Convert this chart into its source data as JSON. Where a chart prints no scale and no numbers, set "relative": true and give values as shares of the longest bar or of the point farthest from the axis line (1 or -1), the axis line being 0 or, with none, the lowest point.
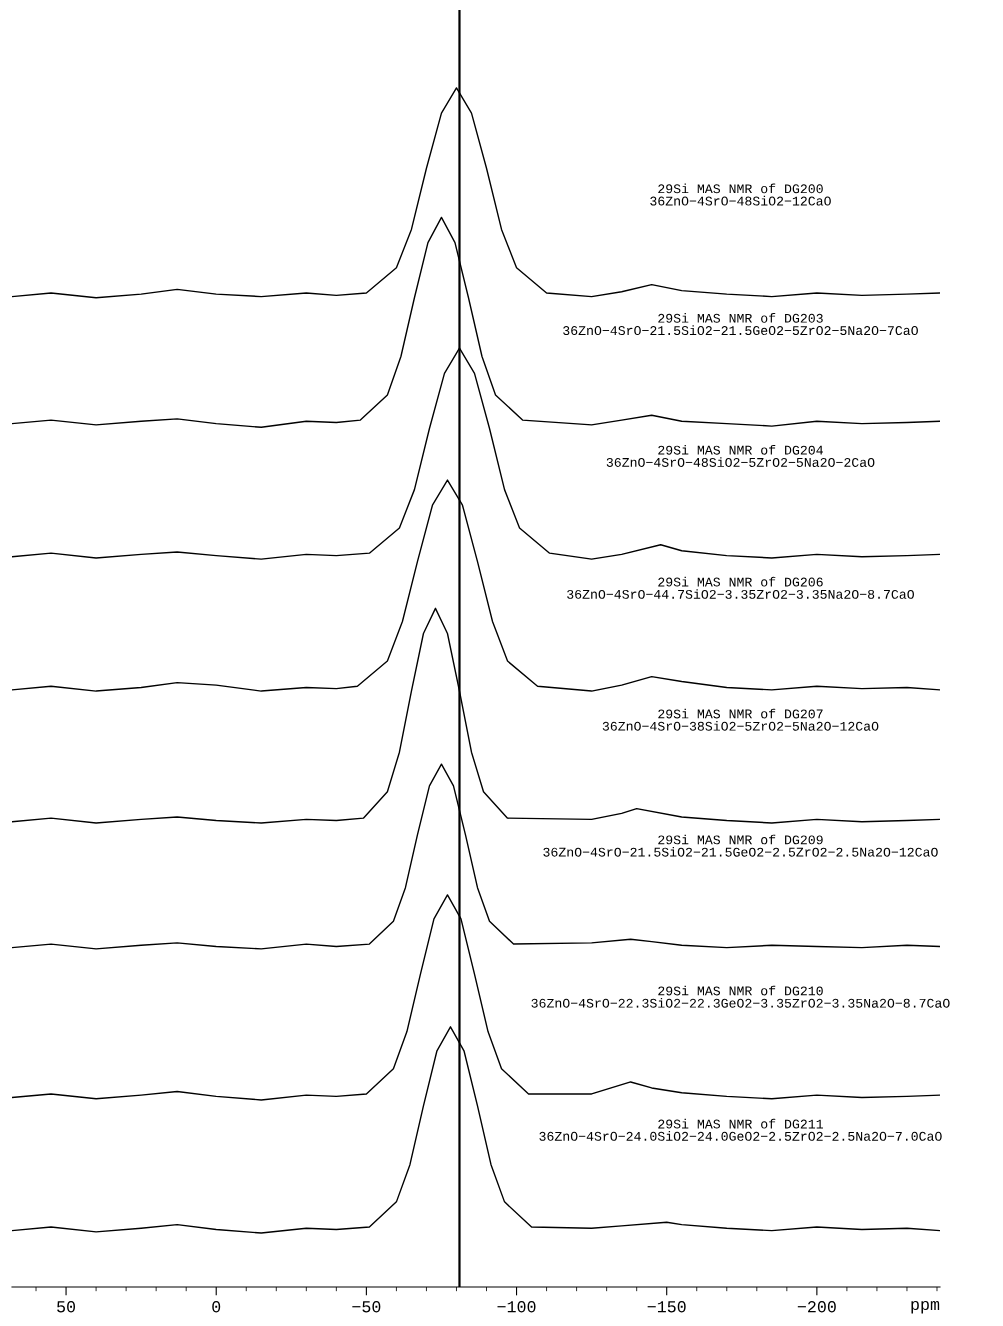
{
  "chart_data": {
    "type": "line",
    "relative": true,
    "xlabel": "ppm",
    "xlim": [
      68,
      -241
    ],
    "xticks": [
      50,
      0,
      {
        "value": -50,
        "label": "−50"
      },
      {
        "value": -100,
        "label": "−100"
      },
      {
        "value": -150,
        "label": "−150"
      },
      {
        "value": -200,
        "label": "−200"
      }
    ],
    "grid": false,
    "legend": false,
    "marker": "none",
    "line_style": "solid",
    "ref_lines": [
      {
        "axis": "x",
        "value": -81,
        "color": "#000000"
      }
    ],
    "annotations": [
      "29Si MAS NMR of DG200\n36ZnO−4SrO−48SiO2−12CaO",
      "29Si MAS NMR of DG203\n36ZnO−4SrO−21.5SiO2−21.5GeO2−5ZrO2−5Na2O−7CaO",
      "29Si MAS NMR of DG204\n36ZnO−4SrO−48SiO2−5ZrO2−5Na2O−2CaO",
      "29Si MAS NMR of DG206\n36ZnO−4SrO−44.7SiO2−3.35ZrO2−3.35Na2O−8.7CaO",
      "29Si MAS NMR of DG207\n36ZnO−4SrO−38SiO2−5ZrO2−5Na2O−12CaO",
      "29Si MAS NMR of DG209\n36ZnO−4SrO−21.5SiO2−21.5GeO2−2.5ZrO2−2.5Na2O−12CaO",
      "29Si MAS NMR of DG210\n36ZnO−4SrO−22.3SiO2−22.3GeO2−3.35ZrO2−3.35Na2O−8.7CaO",
      "29Si MAS NMR of DG211\n36ZnO−4SrO−24.0SiO2−24.0GeO2−2.5ZrO2−2.5Na2O−7.0CaO"
    ],
    "series": [
      {
        "color": "#000000",
        "x": [
          68,
          55,
          40,
          25,
          13,
          0,
          -15,
          -30,
          -40,
          -50,
          -60,
          -65,
          -70,
          -75,
          -80,
          -85,
          -90,
          -95,
          -100,
          -110,
          -125,
          -135,
          -145,
          -155,
          -170,
          -185,
          -200,
          -215,
          -230,
          -241
        ],
        "values": [
          0.826,
          0.829,
          0.825,
          0.828,
          0.832,
          0.828,
          0.826,
          0.829,
          0.827,
          0.829,
          0.85,
          0.882,
          0.933,
          0.979,
          1.0,
          0.979,
          0.933,
          0.882,
          0.85,
          0.829,
          0.826,
          0.83,
          0.836,
          0.831,
          0.828,
          0.826,
          0.829,
          0.827,
          0.828,
          0.829
        ]
      },
      {
        "color": "#000000",
        "x": [
          68,
          55,
          40,
          25,
          13,
          0,
          -15,
          -30,
          -40,
          -48,
          -57,
          -61.5,
          -66,
          -70.5,
          -75,
          -79.5,
          -84,
          -88.5,
          -93,
          -102,
          -125,
          -135,
          -145,
          -155,
          -170,
          -185,
          -200,
          -215,
          -230,
          -241
        ],
        "values": [
          0.72,
          0.723,
          0.719,
          0.722,
          0.724,
          0.72,
          0.717,
          0.722,
          0.721,
          0.723,
          0.744,
          0.776,
          0.825,
          0.871,
          0.892,
          0.871,
          0.825,
          0.776,
          0.744,
          0.723,
          0.719,
          0.723,
          0.727,
          0.722,
          0.72,
          0.718,
          0.722,
          0.72,
          0.721,
          0.722
        ]
      },
      {
        "color": "#000000",
        "x": [
          68,
          55,
          40,
          25,
          13,
          0,
          -15,
          -30,
          -40,
          -51,
          -61,
          -66,
          -71,
          -76,
          -81,
          -86,
          -91,
          -96,
          -101,
          -111,
          -125,
          -135,
          -148,
          -155,
          -170,
          -185,
          -200,
          -215,
          -230,
          -241
        ],
        "values": [
          0.609,
          0.612,
          0.608,
          0.611,
          0.613,
          0.61,
          0.607,
          0.611,
          0.61,
          0.612,
          0.633,
          0.665,
          0.716,
          0.762,
          0.783,
          0.762,
          0.716,
          0.665,
          0.633,
          0.612,
          0.607,
          0.611,
          0.619,
          0.614,
          0.61,
          0.608,
          0.611,
          0.609,
          0.61,
          0.611
        ]
      },
      {
        "color": "#000000",
        "x": [
          68,
          55,
          40,
          25,
          13,
          0,
          -15,
          -30,
          -40,
          -47,
          -57,
          -62,
          -67,
          -72,
          -77,
          -82,
          -87,
          -92,
          -97,
          -107,
          -125,
          -135,
          -145,
          -155,
          -170,
          -185,
          -200,
          -215,
          -230,
          -241
        ],
        "values": [
          0.498,
          0.501,
          0.497,
          0.5,
          0.504,
          0.502,
          0.497,
          0.5,
          0.499,
          0.501,
          0.522,
          0.555,
          0.605,
          0.652,
          0.673,
          0.652,
          0.605,
          0.555,
          0.522,
          0.501,
          0.497,
          0.502,
          0.509,
          0.505,
          0.5,
          0.498,
          0.501,
          0.499,
          0.5,
          0.498
        ]
      },
      {
        "color": "#000000",
        "x": [
          68,
          55,
          40,
          25,
          13,
          0,
          -15,
          -30,
          -40,
          -49,
          -57,
          -61,
          -65,
          -69,
          -73,
          -77,
          -81,
          -85,
          -89,
          -97,
          -125,
          -135,
          -140,
          -155,
          -170,
          -185,
          -200,
          -215,
          -230,
          -241
        ],
        "values": [
          0.388,
          0.391,
          0.387,
          0.39,
          0.392,
          0.389,
          0.387,
          0.39,
          0.389,
          0.391,
          0.413,
          0.446,
          0.497,
          0.545,
          0.566,
          0.545,
          0.497,
          0.446,
          0.413,
          0.391,
          0.39,
          0.395,
          0.399,
          0.392,
          0.389,
          0.387,
          0.39,
          0.388,
          0.389,
          0.39
        ]
      },
      {
        "color": "#000000",
        "x": [
          68,
          55,
          40,
          25,
          13,
          0,
          -15,
          -30,
          -40,
          -51,
          -59,
          -63,
          -67,
          -71,
          -75,
          -79,
          -83,
          -87,
          -91,
          -99,
          -125,
          -138,
          -145,
          -155,
          -170,
          -185,
          -200,
          -215,
          -230,
          -241
        ],
        "values": [
          0.283,
          0.286,
          0.282,
          0.285,
          0.287,
          0.284,
          0.282,
          0.286,
          0.284,
          0.286,
          0.305,
          0.333,
          0.377,
          0.418,
          0.436,
          0.418,
          0.377,
          0.333,
          0.305,
          0.286,
          0.287,
          0.29,
          0.288,
          0.285,
          0.283,
          0.285,
          0.284,
          0.283,
          0.285,
          0.284
        ]
      },
      {
        "color": "#000000",
        "x": [
          68,
          55,
          40,
          25,
          13,
          0,
          -15,
          -30,
          -40,
          -50,
          -59,
          -63.5,
          -68,
          -72.5,
          -77,
          -81.5,
          -86,
          -90.5,
          -95,
          -104,
          -125,
          -138,
          -145,
          -155,
          -170,
          -185,
          -200,
          -215,
          -230,
          -241
        ],
        "values": [
          0.158,
          0.161,
          0.157,
          0.16,
          0.163,
          0.159,
          0.156,
          0.16,
          0.159,
          0.161,
          0.182,
          0.213,
          0.261,
          0.307,
          0.327,
          0.307,
          0.261,
          0.213,
          0.182,
          0.161,
          0.161,
          0.171,
          0.166,
          0.162,
          0.159,
          0.157,
          0.16,
          0.158,
          0.159,
          0.16
        ]
      },
      {
        "color": "#000000",
        "x": [
          68,
          55,
          40,
          25,
          13,
          0,
          -15,
          -30,
          -40,
          -51,
          -60,
          -64.5,
          -69,
          -73.5,
          -78,
          -82.5,
          -87,
          -91.5,
          -96,
          -105,
          -125,
          -135,
          -150,
          -155,
          -170,
          -185,
          -200,
          -215,
          -230,
          -241
        ],
        "values": [
          0.047,
          0.05,
          0.046,
          0.049,
          0.052,
          0.048,
          0.045,
          0.049,
          0.048,
          0.05,
          0.071,
          0.102,
          0.151,
          0.197,
          0.217,
          0.197,
          0.151,
          0.102,
          0.071,
          0.05,
          0.049,
          0.051,
          0.054,
          0.052,
          0.049,
          0.047,
          0.05,
          0.048,
          0.049,
          0.047
        ]
      }
    ]
  }
}
